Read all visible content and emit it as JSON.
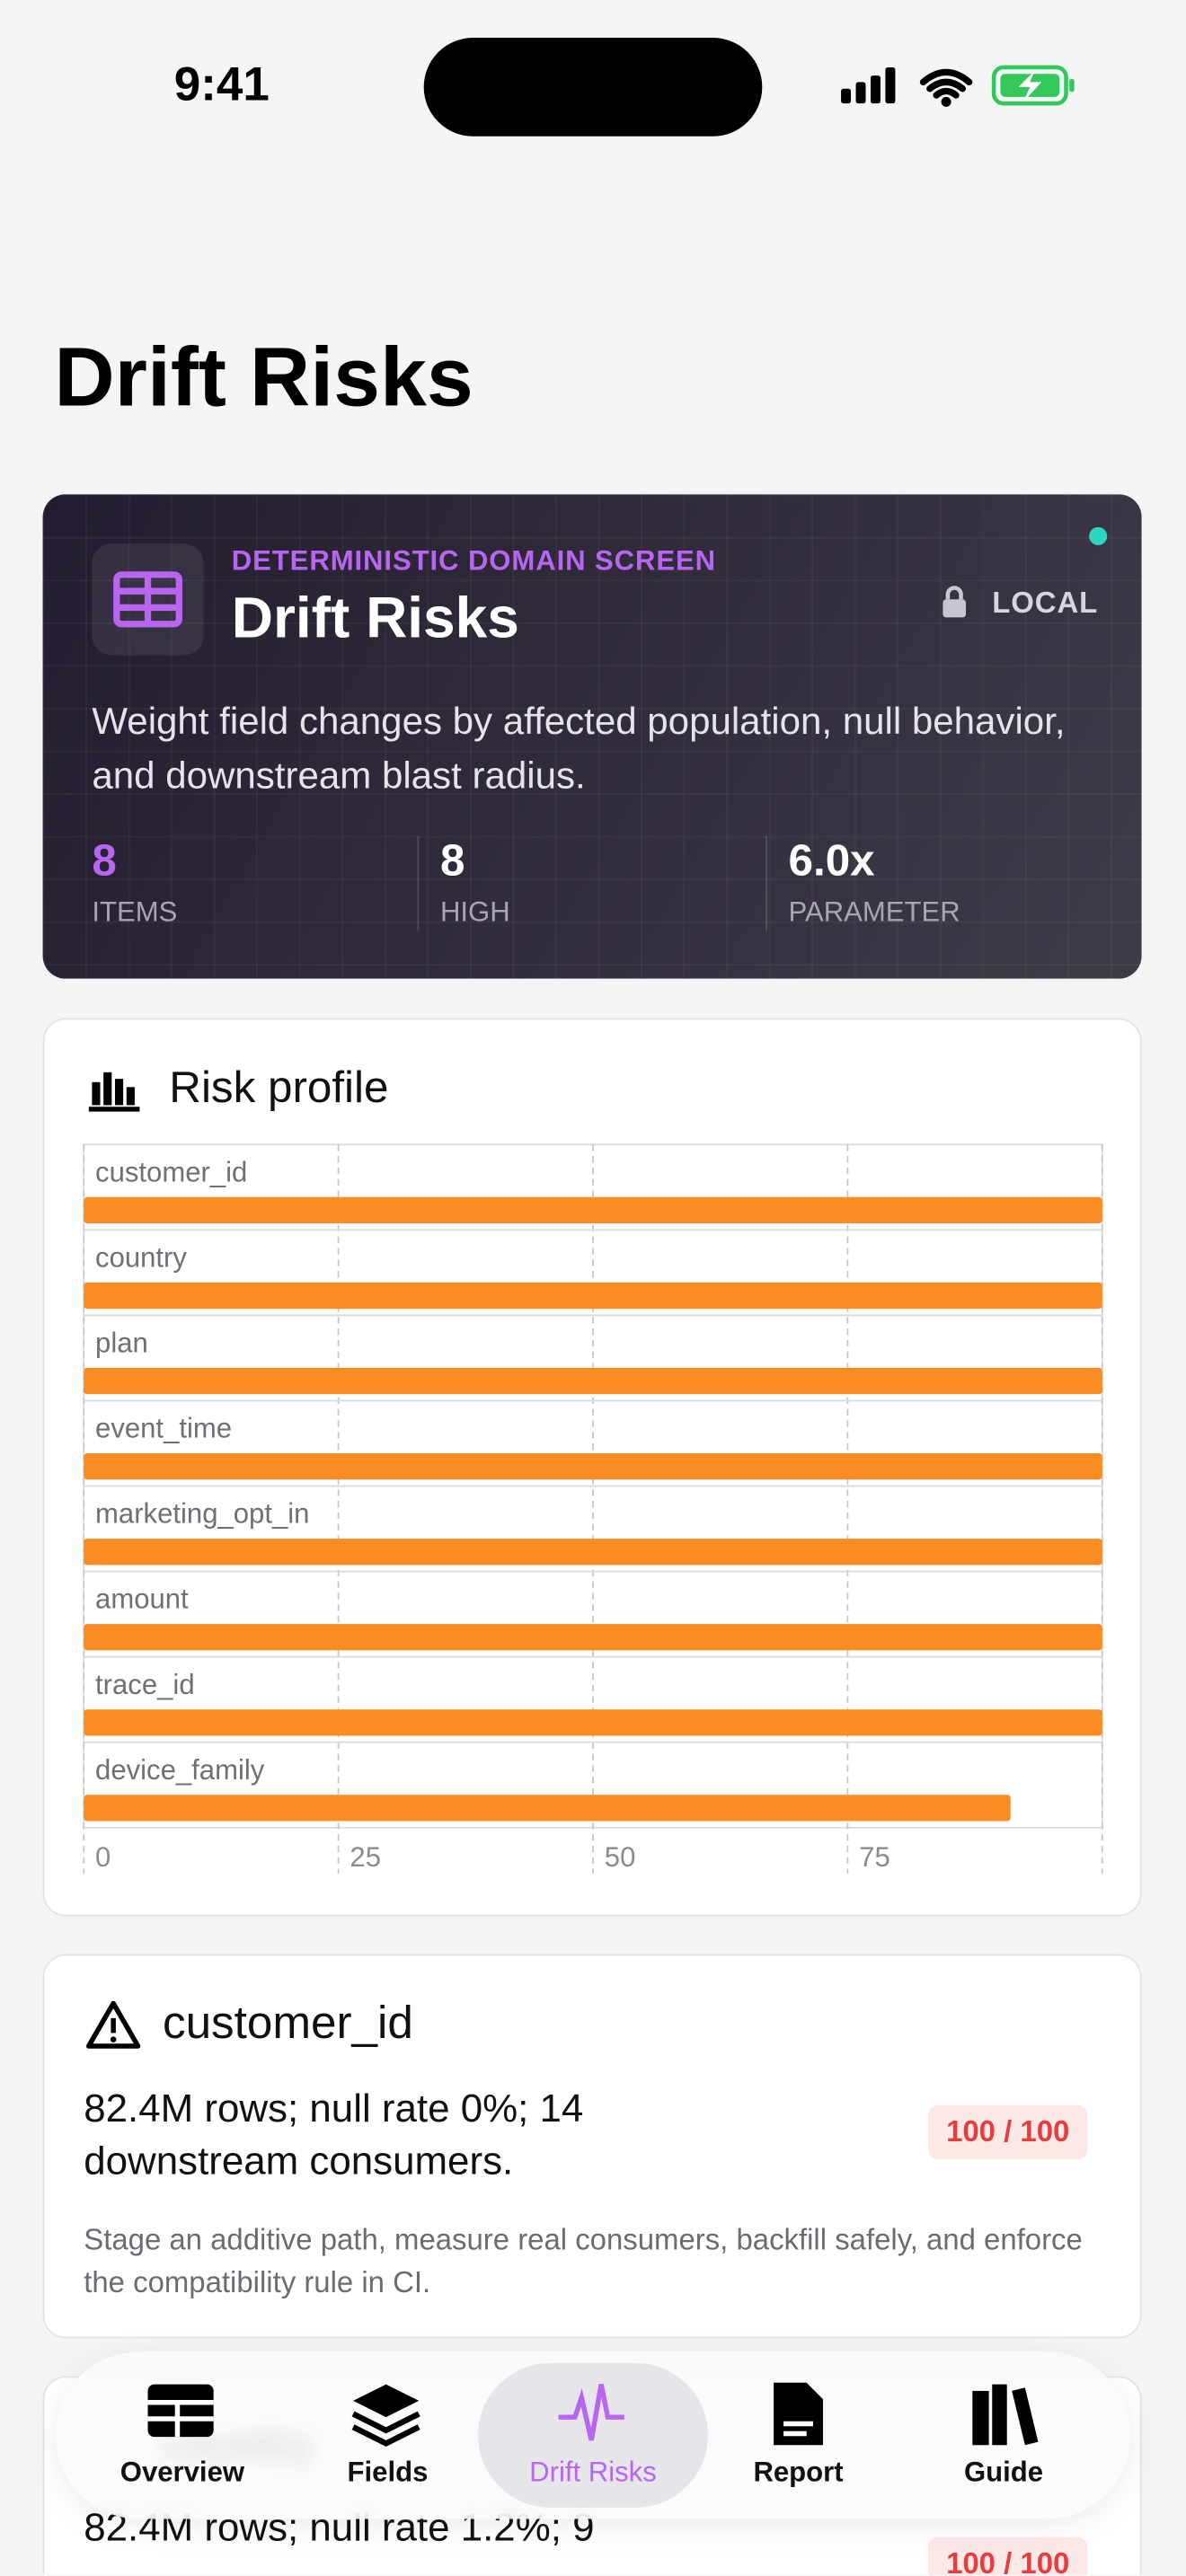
{
  "status_bar": {
    "time": "9:41"
  },
  "page_title": "Drift Risks",
  "hero": {
    "eyebrow": "DETERMINISTIC DOMAIN SCREEN",
    "title": "Drift Risks",
    "badge": "LOCAL",
    "description": "Weight field changes by affected population, null behavior, and downstream blast radius.",
    "stats": [
      {
        "value": "8",
        "label": "ITEMS"
      },
      {
        "value": "8",
        "label": "HIGH"
      },
      {
        "value": "6.0x",
        "label": "PARAMETER"
      }
    ]
  },
  "chart_data": {
    "type": "bar",
    "orientation": "horizontal",
    "title": "Risk profile",
    "categories": [
      "customer_id",
      "country",
      "plan",
      "event_time",
      "marketing_opt_in",
      "amount",
      "trace_id",
      "device_family"
    ],
    "values": [
      100,
      100,
      100,
      100,
      100,
      100,
      100,
      91
    ],
    "color": "#fb8c23",
    "xlim": [
      0,
      100
    ],
    "xticks": [
      0,
      25,
      50,
      75
    ],
    "grid": true
  },
  "risks": [
    {
      "field": "customer_id",
      "summary": "82.4M rows; null rate 0%; 14 downstream consumers.",
      "score": "100 / 100",
      "advice": "Stage an additive path, measure real consumers, backfill safely, and enforce the compatibility rule in CI."
    },
    {
      "field": "country",
      "summary": "82.4M rows; null rate 1.2%; 9",
      "score": "100 / 100"
    }
  ],
  "tabs": [
    "Overview",
    "Fields",
    "Drift Risks",
    "Report",
    "Guide"
  ]
}
